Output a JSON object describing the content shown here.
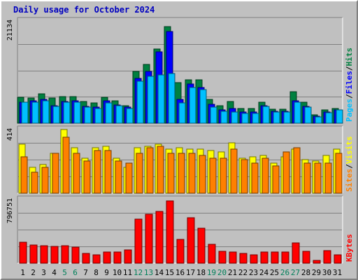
{
  "chart_data": {
    "type": "bar",
    "title": "Daily usage for October 2024",
    "categories": [
      "1",
      "2",
      "3",
      "4",
      "5",
      "6",
      "7",
      "8",
      "9",
      "10",
      "11",
      "12",
      "13",
      "14",
      "15",
      "16",
      "17",
      "18",
      "19",
      "20",
      "21",
      "22",
      "23",
      "24",
      "25",
      "26",
      "27",
      "28",
      "29",
      "30",
      "31"
    ],
    "weekend_days": [
      "5",
      "6",
      "12",
      "13",
      "19",
      "20",
      "26",
      "27"
    ],
    "panels": [
      {
        "name": "top",
        "max_label": "21134",
        "ylim": [
          0,
          21134
        ],
        "legend": [
          "Pages",
          "Files",
          "Hits"
        ],
        "series": [
          {
            "name": "Hits",
            "color": "#008040",
            "values": [
              5400,
              5200,
              6100,
              5200,
              5600,
              5500,
              4500,
              4200,
              5400,
              4600,
              3700,
              10800,
              12200,
              15500,
              20100,
              8400,
              9100,
              9000,
              4900,
              3700,
              4500,
              3100,
              3000,
              4400,
              2900,
              2900,
              6500,
              4300,
              1700,
              2800,
              3100
            ]
          },
          {
            "name": "Files",
            "color": "#0000ff",
            "values": [
              4400,
              4600,
              4900,
              3700,
              4500,
              4600,
              3500,
              3300,
              4600,
              3800,
              3300,
              9300,
              10800,
              14800,
              19100,
              4900,
              8100,
              7400,
              3900,
              2700,
              3100,
              2300,
              2300,
              3700,
              2500,
              2500,
              4600,
              3500,
              1500,
              2400,
              2700
            ]
          },
          {
            "name": "Pages",
            "color": "#00c0ff",
            "values": [
              4300,
              4400,
              4700,
              3500,
              4300,
              4400,
              3300,
              3000,
              4200,
              3600,
              3100,
              8800,
              9700,
              10000,
              10300,
              4200,
              7500,
              7000,
              3300,
              2500,
              2400,
              2000,
              2100,
              3500,
              2300,
              2300,
              4400,
              3400,
              1300,
              2200,
              2700
            ]
          }
        ]
      },
      {
        "name": "middle",
        "max_label": "414",
        "ylim": [
          0,
          414
        ],
        "legend": [
          "Sites",
          "Visits"
        ],
        "series": [
          {
            "name": "Visits",
            "color": "#ffff00",
            "values": [
              320,
              170,
              190,
              260,
              420,
              300,
              230,
              300,
              310,
              230,
              170,
              300,
              310,
              320,
              290,
              300,
              290,
              290,
              280,
              270,
              330,
              230,
              240,
              250,
              200,
              240,
              290,
              220,
              210,
              250,
              290
            ]
          },
          {
            "name": "Sites",
            "color": "#ff8000",
            "values": [
              240,
              140,
              170,
              260,
              370,
              260,
              210,
              280,
              280,
              210,
              200,
              260,
              300,
              310,
              260,
              260,
              260,
              250,
              230,
              230,
              290,
              220,
              200,
              230,
              180,
              270,
              300,
              200,
              200,
              200,
              260
            ]
          }
        ]
      },
      {
        "name": "bottom",
        "max_label": "796751",
        "ylim": [
          0,
          796751
        ],
        "legend": [
          "KBytes"
        ],
        "series": [
          {
            "name": "KBytes",
            "color": "#ff0000",
            "values": [
              265000,
              230000,
              225000,
              210000,
              220000,
              205000,
              120000,
              105000,
              145000,
              140000,
              165000,
              555000,
              620000,
              655000,
              790000,
              305000,
              575000,
              445000,
              235000,
              150000,
              140000,
              125000,
              110000,
              145000,
              145000,
              140000,
              260000,
              150000,
              35000,
              155000,
              105000
            ]
          }
        ]
      }
    ]
  }
}
